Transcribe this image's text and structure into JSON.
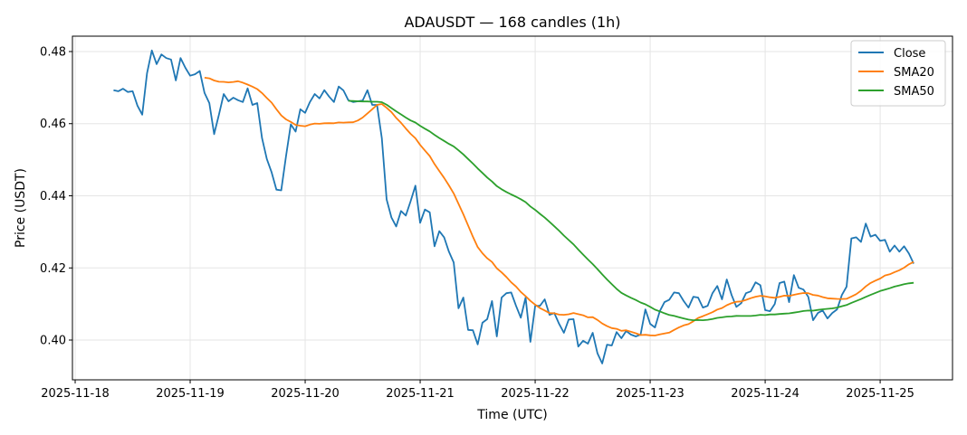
{
  "chart_data": {
    "type": "line",
    "title": "ADAUSDT — 168 candles (1h)",
    "xlabel": "Time (UTC)",
    "ylabel": "Price (USDT)",
    "x_start": "2025-11-18 08:00",
    "interval_hours": 1,
    "xlim_hours_from_2025-11-18": [
      -0.57,
      183.1
    ],
    "ylim": [
      0.38897,
      0.48426
    ],
    "grid": true,
    "legend_position": "top-right",
    "x_ticks": [
      "2025-11-18",
      "2025-11-19",
      "2025-11-20",
      "2025-11-21",
      "2025-11-22",
      "2025-11-23",
      "2025-11-24",
      "2025-11-25"
    ],
    "y_ticks": [
      "0.40",
      "0.42",
      "0.44",
      "0.46",
      "0.48"
    ],
    "y_tick_values": [
      0.4,
      0.42,
      0.44,
      0.46,
      0.48
    ],
    "series": [
      {
        "name": "Close",
        "color": "#1f77b4",
        "values": [
          0.4693,
          0.469,
          0.4697,
          0.4688,
          0.469,
          0.465,
          0.4625,
          0.474,
          0.4803,
          0.4765,
          0.4792,
          0.4782,
          0.4778,
          0.472,
          0.4782,
          0.4755,
          0.4733,
          0.4737,
          0.4746,
          0.4685,
          0.4657,
          0.4571,
          0.4625,
          0.4682,
          0.4662,
          0.4672,
          0.4665,
          0.466,
          0.4698,
          0.4652,
          0.4657,
          0.456,
          0.4502,
          0.4465,
          0.4417,
          0.4415,
          0.451,
          0.4598,
          0.4578,
          0.464,
          0.463,
          0.466,
          0.4682,
          0.467,
          0.4693,
          0.4675,
          0.466,
          0.4703,
          0.4692,
          0.4665,
          0.466,
          0.4662,
          0.4664,
          0.4693,
          0.4652,
          0.4652,
          0.456,
          0.439,
          0.434,
          0.4315,
          0.4358,
          0.4345,
          0.4385,
          0.4428,
          0.4325,
          0.4362,
          0.4354,
          0.426,
          0.4302,
          0.4285,
          0.4245,
          0.4215,
          0.4088,
          0.4118,
          0.4028,
          0.4027,
          0.3988,
          0.4048,
          0.4058,
          0.4108,
          0.401,
          0.4118,
          0.413,
          0.4132,
          0.4095,
          0.4062,
          0.4118,
          0.3995,
          0.4095,
          0.4095,
          0.4113,
          0.407,
          0.4075,
          0.4045,
          0.402,
          0.4057,
          0.4058,
          0.3982,
          0.3998,
          0.399,
          0.402,
          0.3963,
          0.3935,
          0.3987,
          0.3985,
          0.4022,
          0.4005,
          0.4025,
          0.4015,
          0.401,
          0.4015,
          0.4085,
          0.4045,
          0.4035,
          0.408,
          0.4105,
          0.4112,
          0.4132,
          0.413,
          0.4108,
          0.409,
          0.412,
          0.4118,
          0.409,
          0.4095,
          0.413,
          0.415,
          0.4113,
          0.4168,
          0.4125,
          0.4092,
          0.4102,
          0.413,
          0.4135,
          0.416,
          0.4152,
          0.4083,
          0.408,
          0.41,
          0.4158,
          0.4162,
          0.4105,
          0.418,
          0.4145,
          0.414,
          0.412,
          0.4055,
          0.4075,
          0.4082,
          0.406,
          0.4075,
          0.4085,
          0.4125,
          0.4148,
          0.4282,
          0.4285,
          0.4272,
          0.4323,
          0.4287,
          0.4292,
          0.4275,
          0.4278,
          0.4245,
          0.4262,
          0.4245,
          0.426,
          0.424,
          0.4212
        ]
      },
      {
        "name": "SMA20",
        "color": "#ff7f0e",
        "window": 20
      },
      {
        "name": "SMA50",
        "color": "#2ca02c",
        "window": 50
      }
    ]
  }
}
